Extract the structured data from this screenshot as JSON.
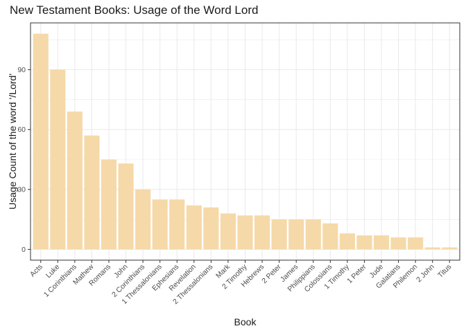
{
  "chart_data": {
    "type": "bar",
    "title": "New Testament Books: Usage of the Word Lord",
    "xlabel": "Book",
    "ylabel": "Usage Count of the word '/Lord'",
    "categories": [
      "Acts",
      "Luke",
      "1 Corinthians",
      "Mathew",
      "Romans",
      "John",
      "2 Corinthians",
      "1 Thessalonians",
      "Ephesians",
      "Revelation",
      "2 Thessalonians",
      "Mark",
      "2 Timothy",
      "Hebrews",
      "2 Peter",
      "James",
      "Philippians",
      "Colossians",
      "1 Timothy",
      "1 Peter",
      "Jude",
      "Galatians",
      "Philemon",
      "2 John",
      "Titus"
    ],
    "values": [
      108,
      90,
      69,
      57,
      45,
      43,
      30,
      25,
      25,
      22,
      21,
      18,
      17,
      17,
      15,
      15,
      15,
      13,
      8,
      7,
      7,
      6,
      6,
      1,
      1
    ],
    "yticks": [
      0,
      30,
      60,
      90
    ],
    "ylim": [
      -5.4,
      113.4
    ],
    "grid": true,
    "bar_color": "#f5d9a8",
    "panel_border_color": "#333333",
    "grid_color": "#ebebeb"
  }
}
